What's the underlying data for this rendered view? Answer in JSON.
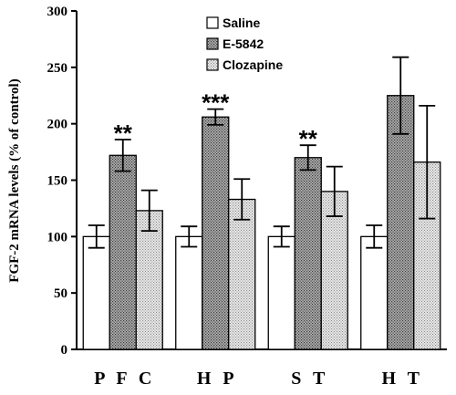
{
  "chart_data": {
    "type": "bar",
    "title": "",
    "xlabel": "",
    "ylabel": "FGF-2 mRNA levels (% of control)",
    "ylim": [
      0,
      300
    ],
    "yticks": [
      0,
      50,
      100,
      150,
      200,
      250,
      300
    ],
    "categories": [
      "PFC",
      "HP",
      "ST",
      "HT"
    ],
    "category_labels": [
      "P F C",
      "H P",
      "S T",
      "H T"
    ],
    "legend_position": "top-center",
    "grid": false,
    "series": [
      {
        "name": "Saline",
        "fill": "#ffffff",
        "pattern": "none",
        "values": [
          100,
          100,
          100,
          100
        ],
        "errors": [
          10,
          9,
          9,
          10
        ]
      },
      {
        "name": "E-5842",
        "fill": "#8c8c8c",
        "pattern": "dense-dots",
        "values": [
          172,
          206,
          170,
          225
        ],
        "errors": [
          14,
          7,
          11,
          34
        ]
      },
      {
        "name": "Clozapine",
        "fill": "#d4d4d4",
        "pattern": "light-dots",
        "values": [
          123,
          133,
          140,
          166
        ],
        "errors": [
          18,
          18,
          22,
          50
        ]
      }
    ],
    "annotations": [
      {
        "category": "PFC",
        "series": "E-5842",
        "text": "**"
      },
      {
        "category": "HP",
        "series": "E-5842",
        "text": "***"
      },
      {
        "category": "ST",
        "series": "E-5842",
        "text": "**"
      }
    ]
  }
}
